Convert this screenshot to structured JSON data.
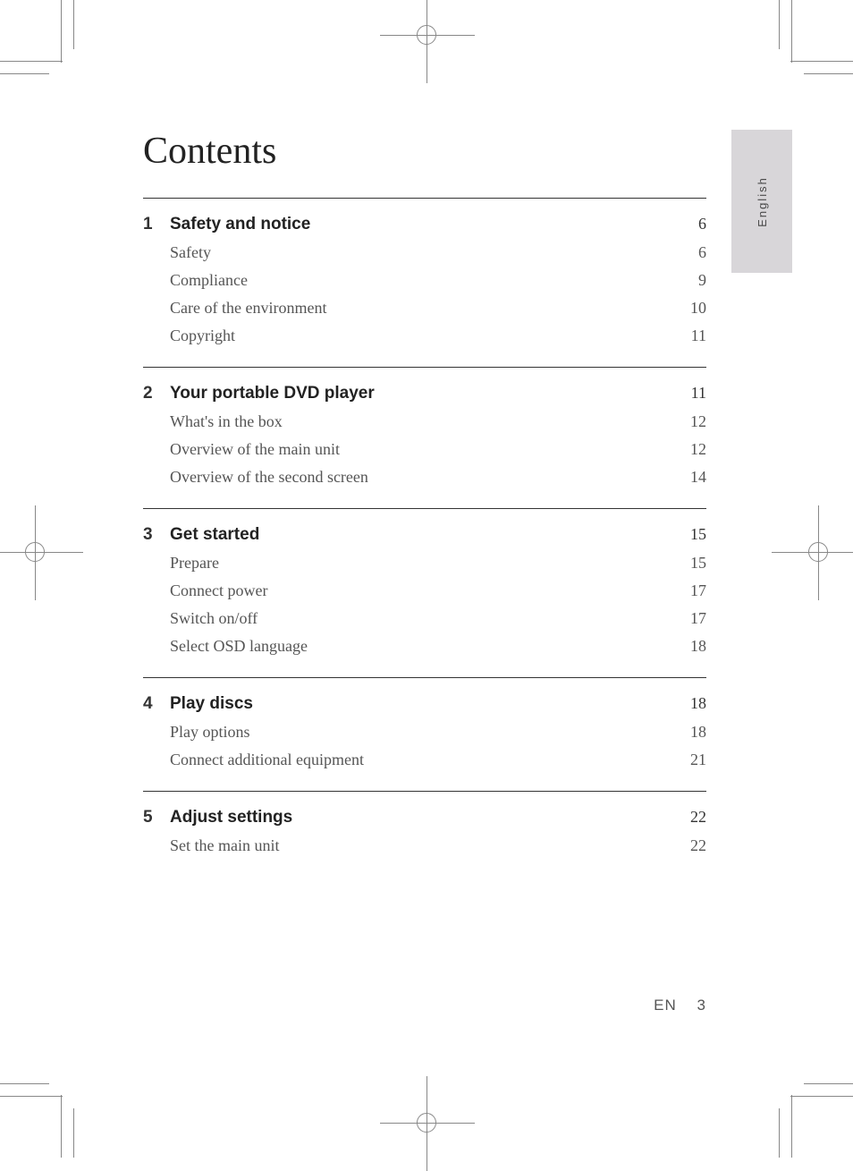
{
  "title": "Contents",
  "language_tab": "English",
  "footer": {
    "lang_code": "EN",
    "page_number": "3"
  },
  "colors": {
    "tab_bg": "#d8d6d9",
    "text_primary": "#333333",
    "text_secondary": "#555555",
    "rule": "#333333",
    "crop": "#888888"
  },
  "typography": {
    "title_fontsize": 42,
    "heading_fontsize": 19,
    "sub_fontsize": 18,
    "tab_fontsize": 13,
    "footer_fontsize": 17
  },
  "sections": [
    {
      "number": "1",
      "heading": "Safety and notice",
      "page": "6",
      "items": [
        {
          "label": "Safety",
          "page": "6"
        },
        {
          "label": "Compliance",
          "page": "9"
        },
        {
          "label": "Care of the environment",
          "page": "10"
        },
        {
          "label": "Copyright",
          "page": "11"
        }
      ]
    },
    {
      "number": "2",
      "heading": "Your portable DVD player",
      "page": "11",
      "items": [
        {
          "label": "What's in the box",
          "page": "12"
        },
        {
          "label": "Overview of the main unit",
          "page": "12"
        },
        {
          "label": "Overview of the second screen",
          "page": "14"
        }
      ]
    },
    {
      "number": "3",
      "heading": "Get started",
      "page": "15",
      "items": [
        {
          "label": "Prepare",
          "page": "15"
        },
        {
          "label": "Connect power",
          "page": "17"
        },
        {
          "label": "Switch on/off",
          "page": "17"
        },
        {
          "label": "Select OSD language",
          "page": "18"
        }
      ]
    },
    {
      "number": "4",
      "heading": "Play discs",
      "page": "18",
      "items": [
        {
          "label": "Play options",
          "page": "18"
        },
        {
          "label": "Connect additional equipment",
          "page": "21"
        }
      ]
    },
    {
      "number": "5",
      "heading": "Adjust settings",
      "page": "22",
      "items": [
        {
          "label": "Set the main unit",
          "page": "22"
        }
      ]
    }
  ]
}
